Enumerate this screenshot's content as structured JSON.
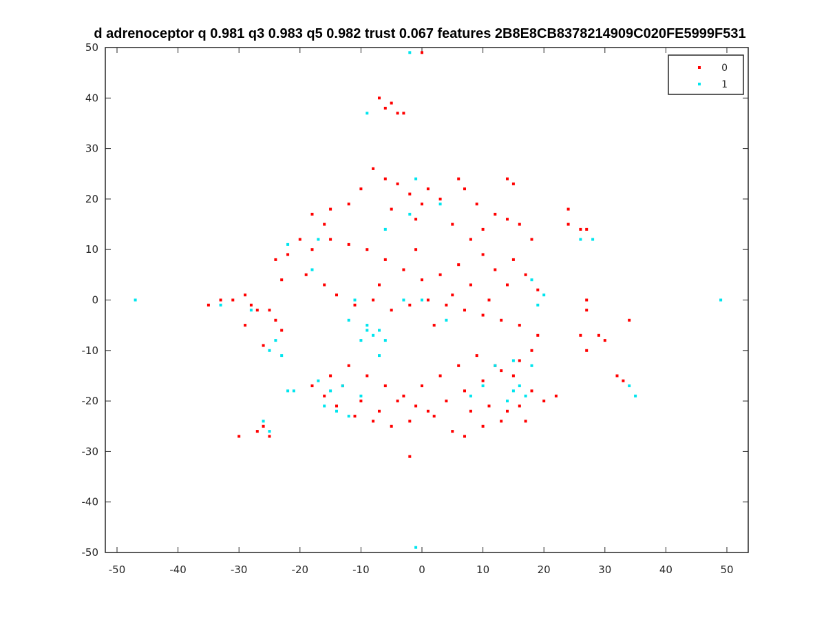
{
  "chart_data": {
    "type": "scatter",
    "title": "d adrenoceptor q 0.981 q3 0.983 q5 0.982 trust 0.067 features 2B8E8CB8378214909C020FE5999F531",
    "xlabel": "",
    "ylabel": "",
    "xlim": [
      -50,
      50
    ],
    "ylim": [
      -50,
      50
    ],
    "x_ticks": [
      "-50",
      "-40",
      "-30",
      "-20",
      "-10",
      "0",
      "10",
      "20",
      "30",
      "40",
      "50"
    ],
    "y_ticks": [
      "50",
      "40",
      "30",
      "20",
      "10",
      "0",
      "-10",
      "-20",
      "-30",
      "-40",
      "-50"
    ],
    "grid": false,
    "legend_position": "top-right",
    "series": [
      {
        "name": "0",
        "color": "#ff0000",
        "points": [
          [
            -7,
            40
          ],
          [
            -6,
            38
          ],
          [
            -4,
            37
          ],
          [
            -5,
            39
          ],
          [
            -3,
            37
          ],
          [
            -8,
            26
          ],
          [
            -6,
            24
          ],
          [
            -4,
            23
          ],
          [
            -10,
            22
          ],
          [
            -2,
            21
          ],
          [
            0,
            19
          ],
          [
            -5,
            18
          ],
          [
            -12,
            19
          ],
          [
            -15,
            18
          ],
          [
            -18,
            17
          ],
          [
            -16,
            15
          ],
          [
            6,
            24
          ],
          [
            7,
            22
          ],
          [
            9,
            19
          ],
          [
            12,
            17
          ],
          [
            14,
            16
          ],
          [
            16,
            15
          ],
          [
            10,
            14
          ],
          [
            5,
            15
          ],
          [
            3,
            20
          ],
          [
            1,
            22
          ],
          [
            -1,
            16
          ],
          [
            8,
            12
          ],
          [
            18,
            12
          ],
          [
            15,
            8
          ],
          [
            17,
            5
          ],
          [
            19,
            2
          ],
          [
            14,
            3
          ],
          [
            12,
            6
          ],
          [
            10,
            9
          ],
          [
            6,
            7
          ],
          [
            3,
            5
          ],
          [
            0,
            4
          ],
          [
            -3,
            6
          ],
          [
            -6,
            8
          ],
          [
            -9,
            10
          ],
          [
            -12,
            11
          ],
          [
            -15,
            12
          ],
          [
            -18,
            10
          ],
          [
            -20,
            12
          ],
          [
            -22,
            9
          ],
          [
            -24,
            8
          ],
          [
            -23,
            4
          ],
          [
            -19,
            5
          ],
          [
            -16,
            3
          ],
          [
            -14,
            1
          ],
          [
            -11,
            -1
          ],
          [
            -8,
            0
          ],
          [
            -5,
            -2
          ],
          [
            -2,
            -1
          ],
          [
            1,
            0
          ],
          [
            4,
            -1
          ],
          [
            7,
            -2
          ],
          [
            10,
            -3
          ],
          [
            13,
            -4
          ],
          [
            16,
            -5
          ],
          [
            19,
            -7
          ],
          [
            18,
            -10
          ],
          [
            16,
            -12
          ],
          [
            13,
            -14
          ],
          [
            10,
            -16
          ],
          [
            7,
            -18
          ],
          [
            4,
            -20
          ],
          [
            1,
            -22
          ],
          [
            -2,
            -24
          ],
          [
            -5,
            -25
          ],
          [
            -8,
            -24
          ],
          [
            -11,
            -23
          ],
          [
            -14,
            -21
          ],
          [
            -16,
            -19
          ],
          [
            -18,
            -17
          ],
          [
            -15,
            -15
          ],
          [
            -12,
            -13
          ],
          [
            -9,
            -15
          ],
          [
            -6,
            -17
          ],
          [
            -3,
            -19
          ],
          [
            0,
            -17
          ],
          [
            3,
            -15
          ],
          [
            6,
            -13
          ],
          [
            9,
            -11
          ],
          [
            12,
            -13
          ],
          [
            15,
            -15
          ],
          [
            18,
            -18
          ],
          [
            16,
            -21
          ],
          [
            13,
            -24
          ],
          [
            10,
            -25
          ],
          [
            7,
            -27
          ],
          [
            5,
            -26
          ],
          [
            2,
            -23
          ],
          [
            -1,
            -21
          ],
          [
            -4,
            -20
          ],
          [
            -7,
            -22
          ],
          [
            -10,
            -20
          ],
          [
            -13,
            -17
          ],
          [
            17,
            -24
          ],
          [
            14,
            -22
          ],
          [
            11,
            -21
          ],
          [
            8,
            -22
          ],
          [
            -35,
            -1
          ],
          [
            -33,
            0
          ],
          [
            -31,
            0
          ],
          [
            -29,
            1
          ],
          [
            -28,
            -1
          ],
          [
            -27,
            -2
          ],
          [
            -25,
            -2
          ],
          [
            -24,
            -4
          ],
          [
            -23,
            -6
          ],
          [
            -26,
            -9
          ],
          [
            -29,
            -5
          ],
          [
            -27,
            -26
          ],
          [
            -26,
            -25
          ],
          [
            -25,
            -27
          ],
          [
            -30,
            -27
          ],
          [
            -2,
            -31
          ],
          [
            24,
            15
          ],
          [
            26,
            14
          ],
          [
            27,
            14
          ],
          [
            24,
            18
          ],
          [
            15,
            23
          ],
          [
            14,
            24
          ],
          [
            27,
            0
          ],
          [
            27,
            -2
          ],
          [
            26,
            -7
          ],
          [
            27,
            -10
          ],
          [
            29,
            -7
          ],
          [
            30,
            -8
          ],
          [
            32,
            -15
          ],
          [
            33,
            -16
          ],
          [
            34,
            -4
          ],
          [
            22,
            -19
          ],
          [
            20,
            -20
          ],
          [
            0,
            49
          ],
          [
            5,
            1
          ],
          [
            2,
            -5
          ],
          [
            -7,
            3
          ],
          [
            8,
            3
          ],
          [
            11,
            0
          ],
          [
            -1,
            10
          ]
        ]
      },
      {
        "name": "1",
        "color": "#00e5ee",
        "points": [
          [
            -47,
            0
          ],
          [
            49,
            0
          ],
          [
            -2,
            49
          ],
          [
            -1,
            -49
          ],
          [
            -9,
            37
          ],
          [
            -9,
            -6
          ],
          [
            -8,
            -7
          ],
          [
            -7,
            -6
          ],
          [
            -10,
            -8
          ],
          [
            -6,
            -8
          ],
          [
            -9,
            -5
          ],
          [
            -12,
            -4
          ],
          [
            -11,
            0
          ],
          [
            -17,
            -16
          ],
          [
            -15,
            -18
          ],
          [
            -13,
            -17
          ],
          [
            -16,
            -21
          ],
          [
            -14,
            -22
          ],
          [
            -12,
            -23
          ],
          [
            -10,
            -19
          ],
          [
            -24,
            -8
          ],
          [
            -25,
            -10
          ],
          [
            -23,
            -11
          ],
          [
            -26,
            -24
          ],
          [
            -25,
            -26
          ],
          [
            -22,
            -18
          ],
          [
            -21,
            -18
          ],
          [
            15,
            -18
          ],
          [
            16,
            -17
          ],
          [
            17,
            -19
          ],
          [
            14,
            -20
          ],
          [
            8,
            -19
          ],
          [
            10,
            -17
          ],
          [
            12,
            -13
          ],
          [
            15,
            -12
          ],
          [
            26,
            12
          ],
          [
            28,
            12
          ],
          [
            -1,
            24
          ],
          [
            -2,
            17
          ],
          [
            -6,
            14
          ],
          [
            3,
            19
          ],
          [
            20,
            1
          ],
          [
            19,
            -1
          ],
          [
            18,
            4
          ],
          [
            -3,
            0
          ],
          [
            0,
            0
          ],
          [
            4,
            -4
          ],
          [
            -7,
            -11
          ],
          [
            -17,
            12
          ],
          [
            -22,
            11
          ],
          [
            34,
            -17
          ],
          [
            35,
            -19
          ],
          [
            -33,
            -1
          ],
          [
            -28,
            -2
          ],
          [
            -18,
            6
          ],
          [
            18,
            -13
          ]
        ]
      }
    ]
  }
}
